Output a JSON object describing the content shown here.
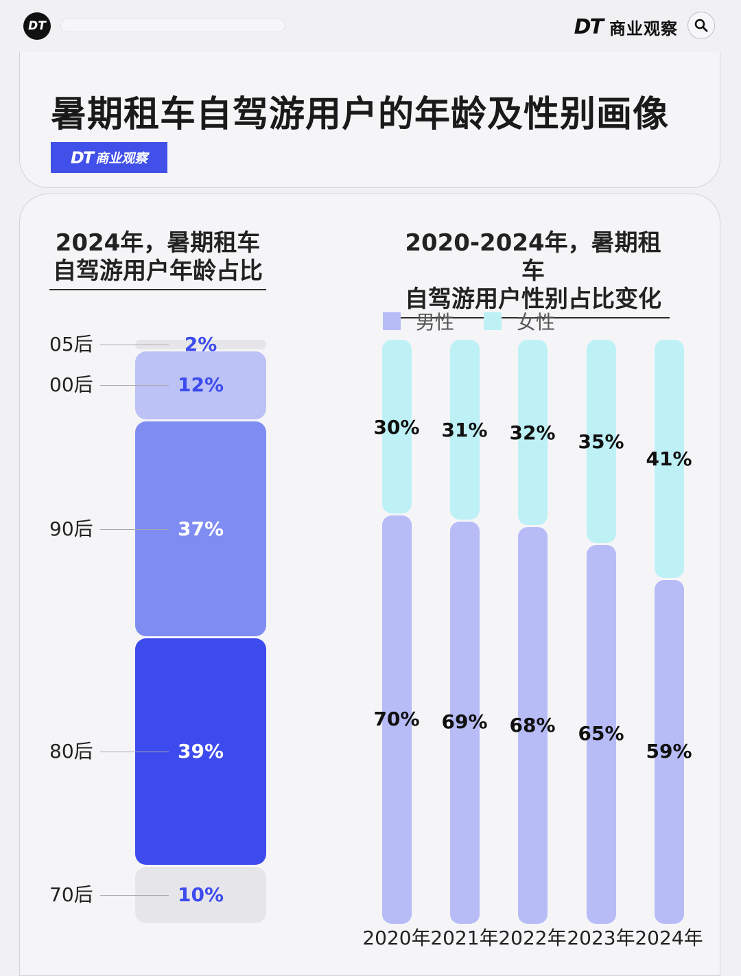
{
  "header": {
    "logo": "DT",
    "brand_mark": "DT",
    "brand_name": "商业观察",
    "search_icon": "search-icon"
  },
  "title": "暑期租车自驾游用户的年龄及性别画像",
  "badge": {
    "mark": "DT",
    "name": "商业观察"
  },
  "colors": {
    "age": [
      "#e6e6ea",
      "#bcc2f6",
      "#7f8cf1",
      "#3d4bee",
      "#e6e6ea"
    ],
    "age_text": [
      "#3d4bee",
      "#3d4bee",
      "#ffffff",
      "#ffffff",
      "#3d4bee"
    ],
    "male": "#b7bcf7",
    "female": "#bdf1f6"
  },
  "chart_data": [
    {
      "type": "bar",
      "title": [
        "2024年，暑期租车",
        "自驾游用户年龄占比"
      ],
      "stacked": true,
      "categories": [
        "05后",
        "00后",
        "90后",
        "80后",
        "70后"
      ],
      "values": [
        2,
        12,
        37,
        39,
        10
      ],
      "labels": [
        "2%",
        "12%",
        "37%",
        "39%",
        "10%"
      ],
      "unit": "%"
    },
    {
      "type": "bar",
      "title": [
        "2020-2024年，暑期租车",
        "自驾游用户性别占比变化"
      ],
      "stacked": true,
      "categories": [
        "2020年",
        "2021年",
        "2022年",
        "2023年",
        "2024年"
      ],
      "legend": [
        "男性",
        "女性"
      ],
      "series": [
        {
          "name": "男性",
          "values": [
            70,
            69,
            68,
            65,
            59
          ],
          "labels": [
            "70%",
            "69%",
            "68%",
            "65%",
            "59%"
          ]
        },
        {
          "name": "女性",
          "values": [
            30,
            31,
            32,
            35,
            41
          ],
          "labels": [
            "30%",
            "31%",
            "32%",
            "35%",
            "41%"
          ]
        }
      ],
      "unit": "%",
      "ylim": [
        0,
        100
      ]
    }
  ]
}
